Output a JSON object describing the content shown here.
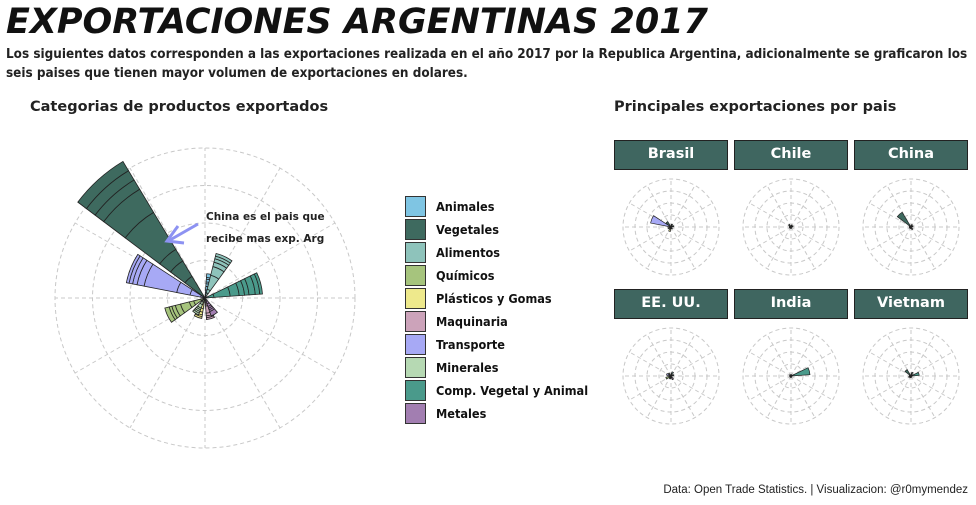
{
  "header": {
    "title": "EXPORTACIONES ARGENTINAS 2017",
    "subtitle": "Los siguientes datos corresponden a las exportaciones realizada en el año 2017 por la Republica Argentina, adicionalmente se graficaron los seis paises que tienen mayor volumen de exportaciones en dolares."
  },
  "left_panel": {
    "title": "Categorias de productos exportados",
    "annotation_line1": "China es el pais que",
    "annotation_line2": "recibe mas exp. Arg"
  },
  "right_panel": {
    "title": "Principales exportaciones por pais"
  },
  "caption": "Data:  Open Trade Statistics. | Visualizacion: @r0mymendez",
  "colors": {
    "strip": "#3f6660",
    "arrow": "#8d92f2",
    "grid": "#c8c8c8"
  },
  "chart_data": [
    {
      "type": "polar_bar",
      "title": "Categorias de productos exportados",
      "radial_max": 1,
      "legend_position": "right",
      "grid": true,
      "categories": [
        "Animales",
        "Vegetales",
        "Alimentos",
        "Químicos",
        "Plásticos y Gomas",
        "Maquinaria",
        "Transporte",
        "Minerales",
        "Comp. Vegetal y Animal",
        "Metales"
      ],
      "colors": [
        "#7fc5e3",
        "#3e6a5f",
        "#8ec3bb",
        "#a6c47d",
        "#eee98c",
        "#cca3ba",
        "#a7a9f5",
        "#b6d9b3",
        "#4a9a8b",
        "#a27eb1"
      ],
      "series": [
        {
          "values": [
            0.06,
            0.28,
            0.06,
            0.05,
            0.03,
            0.02,
            0.05,
            0.02,
            0.1,
            0.02
          ]
        },
        {
          "values": [
            0.03,
            0.2,
            0.04,
            0.08,
            0.02,
            0.03,
            0.12,
            0.03,
            0.18,
            0.02
          ]
        },
        {
          "values": [
            0.04,
            0.15,
            0.16,
            0.05,
            0.02,
            0.02,
            0.15,
            0.03,
            0.1,
            0.03
          ]
        },
        {
          "values": [
            0.03,
            0.48,
            0.1,
            0.1,
            0.05,
            0.02,
            0.37,
            0.04,
            0.06,
            0.03
          ]
        },
        {
          "values": [
            0.02,
            0.3,
            0.05,
            0.06,
            0.04,
            0.08,
            0.08,
            0.02,
            0.05,
            0.02
          ]
        },
        {
          "values": [
            0.03,
            0.12,
            0.04,
            0.04,
            0.03,
            0.03,
            0.05,
            0.02,
            0.07,
            0.02
          ]
        },
        {
          "values": [
            0.02,
            0.12,
            0.03,
            0.03,
            0.02,
            0.02,
            0.04,
            0.02,
            0.05,
            0.02
          ]
        },
        {
          "values": [
            0.04,
            0.12,
            0.03,
            0.05,
            0.02,
            0.02,
            0.03,
            0.02,
            0.03,
            0.05
          ]
        }
      ]
    },
    {
      "type": "polar_bar",
      "title": "Principales exportaciones por pais",
      "facets": [
        {
          "name": "Brasil",
          "values": [
            0.05,
            0.15,
            0.05,
            0.06,
            0.1,
            0.02,
            0.55,
            0.03,
            0.05,
            0.03
          ]
        },
        {
          "name": "Chile",
          "values": [
            0.02,
            0.06,
            0.03,
            0.02,
            0.01,
            0.01,
            0.02,
            0.01,
            0.03,
            0.01
          ]
        },
        {
          "name": "China",
          "values": [
            0.03,
            0.45,
            0.04,
            0.02,
            0.01,
            0.01,
            0.02,
            0.02,
            0.03,
            0.05
          ]
        },
        {
          "name": "EE. UU.",
          "values": [
            0.05,
            0.07,
            0.09,
            0.12,
            0.05,
            0.03,
            0.1,
            0.05,
            0.05,
            0.08
          ]
        },
        {
          "name": "India",
          "values": [
            0.01,
            0.02,
            0.01,
            0.01,
            0.01,
            0.01,
            0.01,
            0.01,
            0.5,
            0.01
          ]
        },
        {
          "name": "Vietnam",
          "values": [
            0.05,
            0.18,
            0.08,
            0.04,
            0.02,
            0.01,
            0.02,
            0.02,
            0.2,
            0.01
          ]
        }
      ]
    }
  ]
}
